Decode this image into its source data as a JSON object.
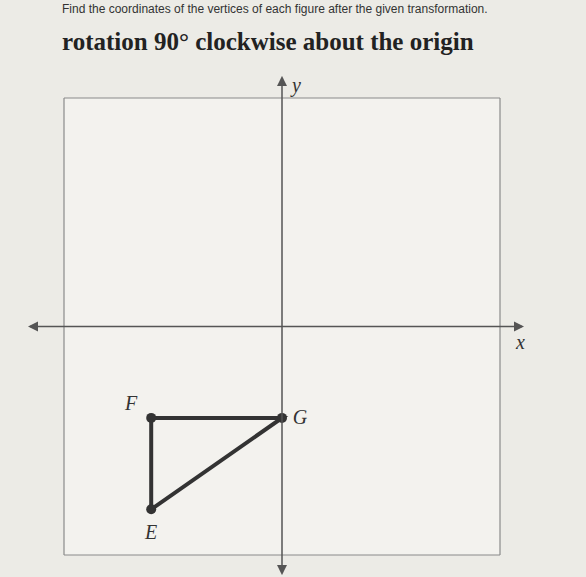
{
  "instructions": "Find the coordinates of the vertices of each figure after the given transformation.",
  "title": "rotation 90° clockwise about the origin",
  "chart_data": {
    "type": "polygon",
    "x_label": "x",
    "y_label": "y",
    "points": [
      {
        "label": "F",
        "x": -3,
        "y": -2
      },
      {
        "label": "G",
        "x": 0,
        "y": -2
      },
      {
        "label": "E",
        "x": -3,
        "y": -4
      }
    ],
    "xlim": [
      -5,
      5
    ],
    "ylim": [
      -5,
      5
    ],
    "xticks": [
      -5,
      -4,
      -3,
      -2,
      -1,
      0,
      1,
      2,
      3,
      4,
      5
    ],
    "yticks": [
      -5,
      -4,
      -3,
      -2,
      -1,
      0,
      1,
      2,
      3,
      4,
      5
    ],
    "grid": true,
    "tick_labels": false,
    "color": "#333333",
    "marker": "circle"
  }
}
